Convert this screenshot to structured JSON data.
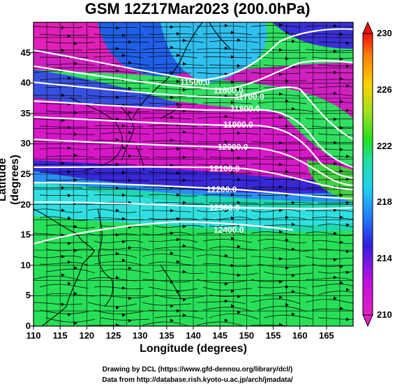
{
  "title": "GSM 12Z17Mar2023 (200.0hPa)",
  "axes": {
    "xlabel": "Longitude (degrees)",
    "ylabel": "Latitude  (degrees)",
    "xticks": [
      "110",
      "115",
      "120",
      "125",
      "130",
      "135",
      "140",
      "145",
      "150",
      "155",
      "160",
      "165"
    ],
    "yticks": [
      "0",
      "5",
      "10",
      "15",
      "20",
      "25",
      "30",
      "35",
      "40",
      "45"
    ],
    "xlim": [
      110,
      170
    ],
    "ylim": [
      0,
      50
    ]
  },
  "colorbar": {
    "ticks": [
      "210",
      "214",
      "218",
      "222",
      "226",
      "230"
    ],
    "range": [
      210,
      230
    ],
    "colors": [
      "#e020c0",
      "#c010e0",
      "#3020e0",
      "#2080ff",
      "#20d0f0",
      "#20e0a0",
      "#20e020",
      "#a0e020",
      "#ffd000",
      "#ff8000",
      "#f01010"
    ]
  },
  "contours": [
    {
      "label": "11500.0"
    },
    {
      "label": "11600.0"
    },
    {
      "label": "11700.0"
    },
    {
      "label": "11800.0"
    },
    {
      "label": "11900.0"
    },
    {
      "label": "12000.0"
    },
    {
      "label": "12100.0"
    },
    {
      "label": "12200.0"
    },
    {
      "label": "12300.0"
    },
    {
      "label": "12400.0"
    }
  ],
  "footer": {
    "line1": "Drawing by DCL (https://www.gfd-dennou.org/library/dcl/)",
    "line2": "Data from http://database.rish.kyoto-u.ac.jp/arch/jmadata/"
  }
}
